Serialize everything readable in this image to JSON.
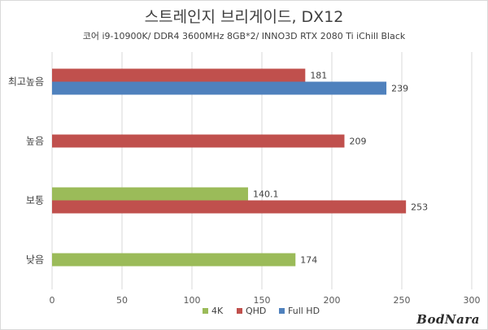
{
  "chart_data": {
    "type": "bar",
    "orientation": "horizontal",
    "title": "스트레인지 브리게이드, DX12",
    "subtitle": "코어 i9-10900K/ DDR4 3600MHz 8GB*2/ INNO3D RTX 2080 Ti iChill Black",
    "categories": [
      "최고높음",
      "높음",
      "보통",
      "낮음"
    ],
    "series": [
      {
        "name": "4K",
        "color": "#9bbb59",
        "values": [
          null,
          null,
          140.1,
          174
        ]
      },
      {
        "name": "QHD",
        "color": "#c0504d",
        "values": [
          181,
          209,
          253,
          null
        ]
      },
      {
        "name": "Full HD",
        "color": "#4f81bd",
        "values": [
          239,
          null,
          null,
          null
        ]
      }
    ],
    "data_labels": [
      [
        "",
        "181",
        "239"
      ],
      [
        "",
        "209",
        ""
      ],
      [
        "140.1",
        "253",
        ""
      ],
      [
        "174",
        "",
        ""
      ]
    ],
    "xlim": [
      0,
      300
    ],
    "xticks": [
      0,
      50,
      100,
      150,
      200,
      250,
      300
    ],
    "grid": true,
    "legend": "bottom"
  },
  "watermark": "BodNara"
}
